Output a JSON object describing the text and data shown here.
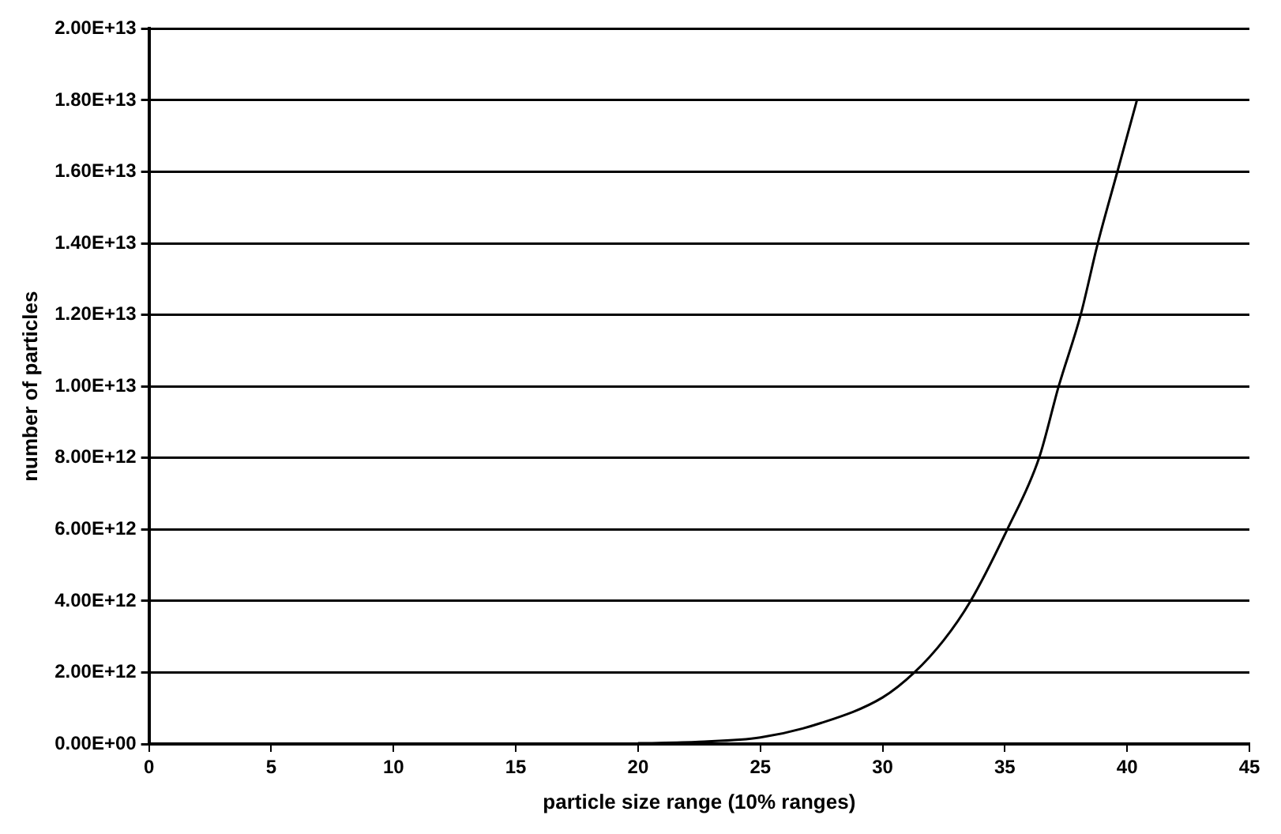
{
  "chart_data": {
    "type": "line",
    "xlabel": "particle size range (10% ranges)",
    "ylabel": "number of particles",
    "x": [
      20,
      22.5,
      25,
      27.5,
      30,
      31.3,
      32.5,
      33.6,
      35.1,
      36.4,
      37.2,
      38.1,
      38.8,
      39.6,
      40.4
    ],
    "series": [
      {
        "color": "#000000",
        "values": [
          20000000000,
          60000000000,
          180000000000,
          590000000000,
          1300000000000,
          2000000000000,
          2900000000000,
          4000000000000,
          6000000000000,
          8000000000000,
          10000000000000,
          12000000000000,
          14000000000000,
          16000000000000,
          18000000000000
        ]
      }
    ],
    "xlim": [
      0,
      45
    ],
    "xticks": [
      0,
      5,
      10,
      15,
      20,
      25,
      30,
      35,
      40,
      45
    ],
    "ylim": [
      0,
      20000000000000
    ],
    "yticks": [
      {
        "value": 0,
        "label": "0.00E+00"
      },
      {
        "value": 2000000000000,
        "label": "2.00E+12"
      },
      {
        "value": 4000000000000,
        "label": "4.00E+12"
      },
      {
        "value": 6000000000000,
        "label": "6.00E+12"
      },
      {
        "value": 8000000000000,
        "label": "8.00E+12"
      },
      {
        "value": 10000000000000,
        "label": "1.00E+13"
      },
      {
        "value": 12000000000000,
        "label": "1.20E+13"
      },
      {
        "value": 14000000000000,
        "label": "1.40E+13"
      },
      {
        "value": 16000000000000,
        "label": "1.60E+13"
      },
      {
        "value": 18000000000000,
        "label": "1.80E+13"
      },
      {
        "value": 20000000000000,
        "label": "2.00E+13"
      }
    ],
    "grid": "y",
    "legend": false,
    "marker": "none",
    "line_style": "solid"
  }
}
